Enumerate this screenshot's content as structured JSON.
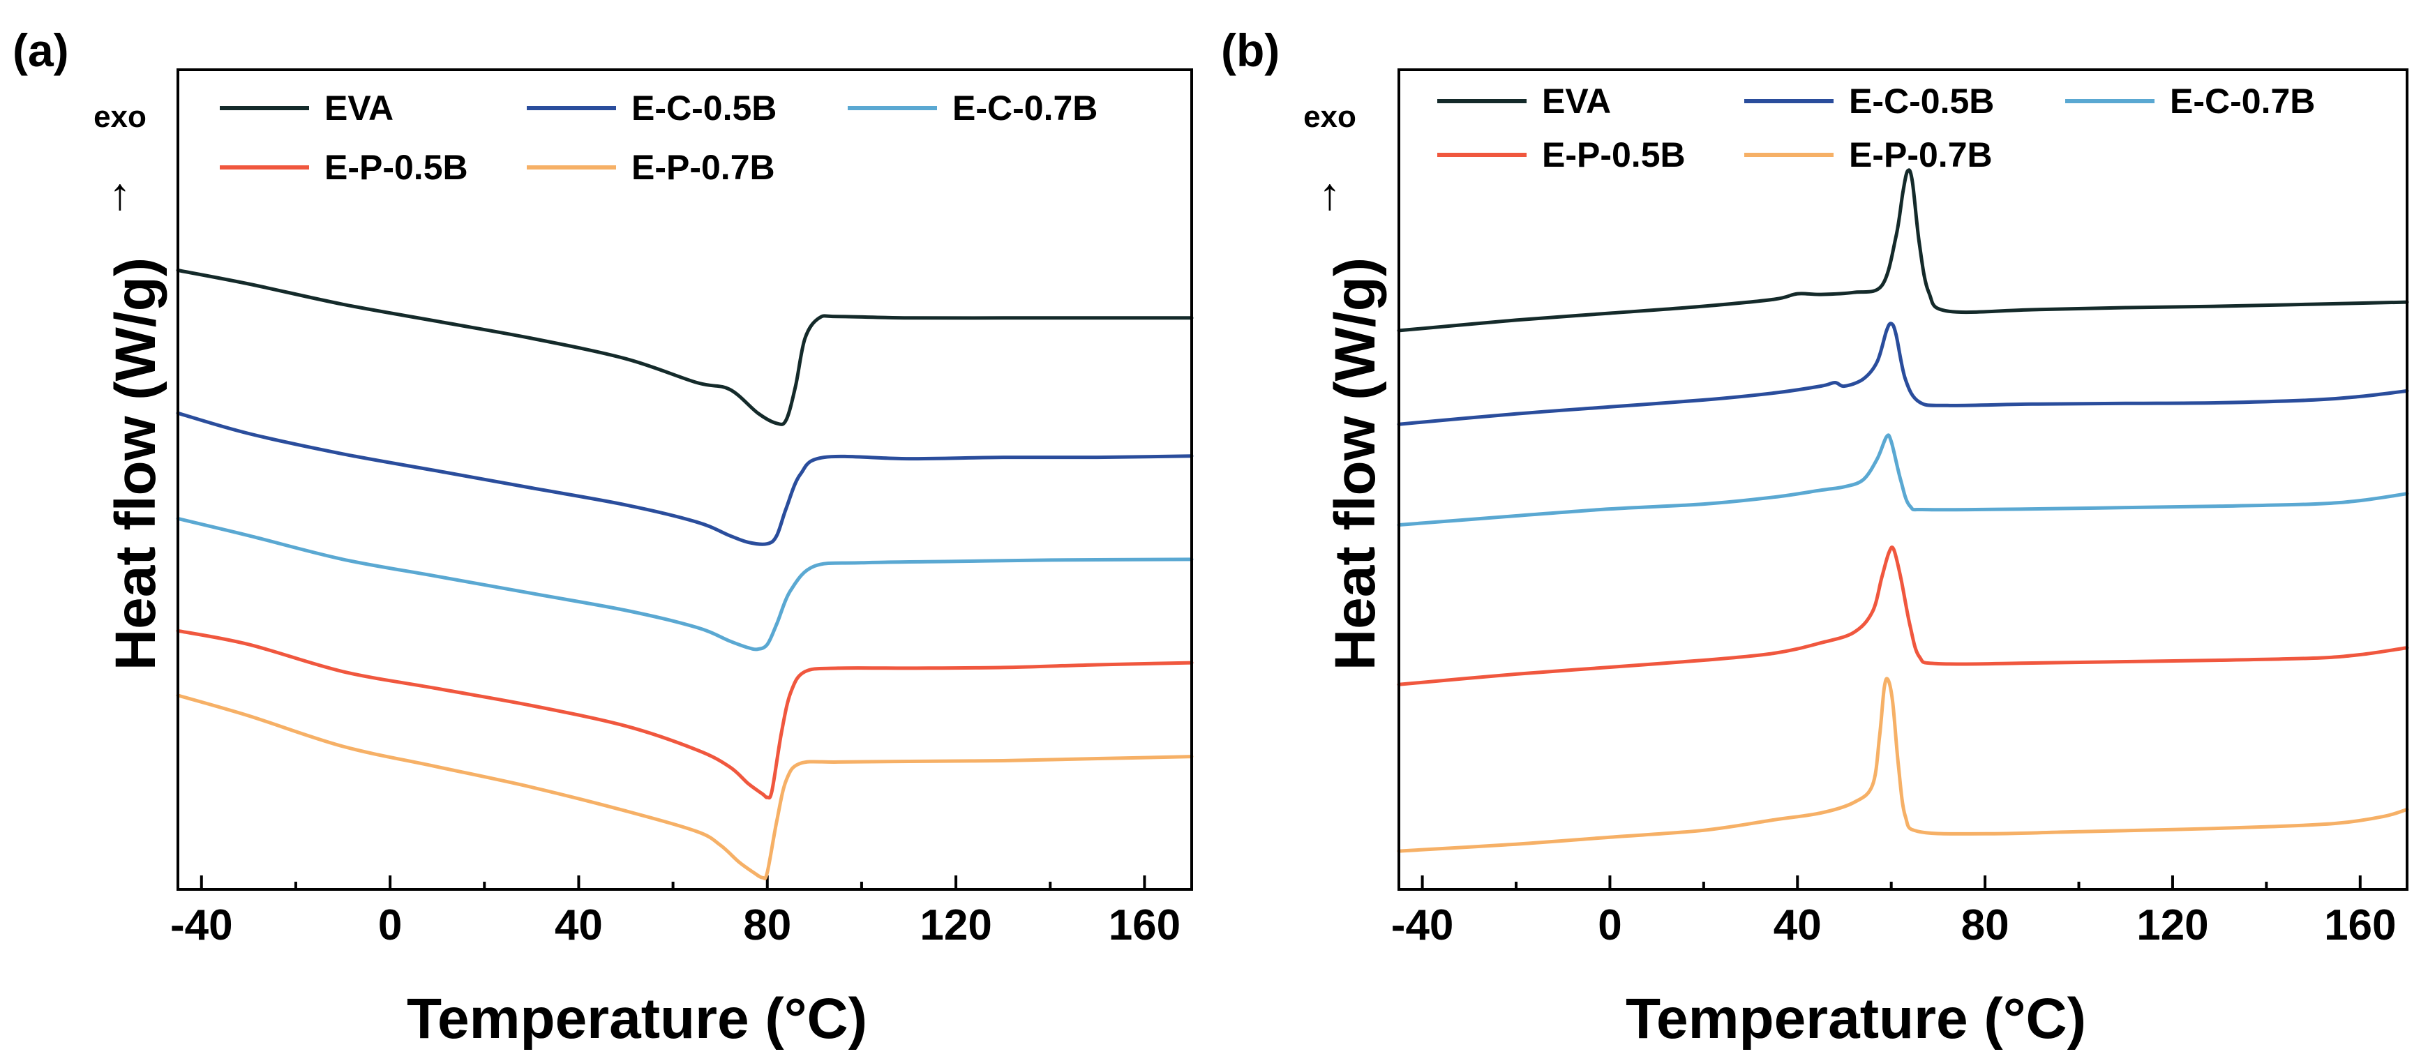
{
  "panels": [
    {
      "panel_label": "(a)",
      "exo_label": "exo",
      "arrow_glyph": "↑"
    },
    {
      "panel_label": "(b)",
      "exo_label": "exo",
      "arrow_glyph": "↑"
    }
  ],
  "chart_data": [
    {
      "type": "line",
      "title": "",
      "xlabel": "Temperature (°C)",
      "ylabel": "Heat flow (W/g)",
      "xlim": [
        -45,
        170
      ],
      "ylim": [
        0,
        100
      ],
      "xticks": [
        -40,
        0,
        40,
        80,
        120,
        160
      ],
      "yticks_shown": false,
      "grid": false,
      "legend_position": "top",
      "series": [
        {
          "name": "EVA",
          "color": "#142a2a",
          "points": [
            [
              -45,
              90
            ],
            [
              -30,
              88
            ],
            [
              -10,
              85
            ],
            [
              10,
              82.5
            ],
            [
              30,
              80
            ],
            [
              50,
              77
            ],
            [
              65,
              73.5
            ],
            [
              72,
              72.5
            ],
            [
              78,
              69
            ],
            [
              82,
              67.5
            ],
            [
              84,
              68
            ],
            [
              86,
              73
            ],
            [
              88,
              80
            ],
            [
              91,
              83
            ],
            [
              95,
              83.2
            ],
            [
              110,
              83
            ],
            [
              130,
              83
            ],
            [
              150,
              83
            ],
            [
              170,
              83
            ]
          ]
        },
        {
          "name": "E-C-0.5B",
          "color": "#2a4d9c",
          "points": [
            [
              -45,
              69
            ],
            [
              -30,
              66
            ],
            [
              -10,
              63
            ],
            [
              10,
              60.5
            ],
            [
              30,
              58
            ],
            [
              50,
              55.5
            ],
            [
              65,
              53
            ],
            [
              72,
              51
            ],
            [
              76,
              50
            ],
            [
              80,
              49.8
            ],
            [
              82,
              51
            ],
            [
              84,
              55
            ],
            [
              87,
              60
            ],
            [
              92,
              62.5
            ],
            [
              110,
              62.3
            ],
            [
              130,
              62.5
            ],
            [
              150,
              62.5
            ],
            [
              170,
              62.7
            ]
          ]
        },
        {
          "name": "E-C-0.7B",
          "color": "#5aa8d2",
          "points": [
            [
              -45,
              53.5
            ],
            [
              -30,
              51
            ],
            [
              -10,
              47.5
            ],
            [
              10,
              45
            ],
            [
              30,
              42.5
            ],
            [
              50,
              40
            ],
            [
              65,
              37.5
            ],
            [
              72,
              35.5
            ],
            [
              76,
              34.5
            ],
            [
              78,
              34.3
            ],
            [
              80,
              35
            ],
            [
              82,
              38
            ],
            [
              85,
              43
            ],
            [
              90,
              46.5
            ],
            [
              100,
              47
            ],
            [
              120,
              47.2
            ],
            [
              140,
              47.4
            ],
            [
              170,
              47.5
            ]
          ]
        },
        {
          "name": "E-P-0.5B",
          "color": "#f0573e",
          "points": [
            [
              -45,
              37
            ],
            [
              -30,
              35
            ],
            [
              -10,
              31
            ],
            [
              10,
              28.5
            ],
            [
              30,
              26
            ],
            [
              50,
              23
            ],
            [
              65,
              19.5
            ],
            [
              72,
              17
            ],
            [
              76,
              14.5
            ],
            [
              79,
              13
            ],
            [
              80,
              12.5
            ],
            [
              81,
              13.5
            ],
            [
              83,
              22
            ],
            [
              85,
              28
            ],
            [
              88,
              31
            ],
            [
              95,
              31.5
            ],
            [
              110,
              31.5
            ],
            [
              130,
              31.6
            ],
            [
              150,
              32
            ],
            [
              170,
              32.3
            ]
          ]
        },
        {
          "name": "E-P-0.7B",
          "color": "#f6b066",
          "points": [
            [
              -45,
              27.5
            ],
            [
              -30,
              24.5
            ],
            [
              -10,
              20
            ],
            [
              10,
              17
            ],
            [
              30,
              14
            ],
            [
              50,
              10.5
            ],
            [
              65,
              7.5
            ],
            [
              70,
              5.5
            ],
            [
              74,
              3
            ],
            [
              77,
              1.5
            ],
            [
              79,
              0.7
            ],
            [
              80,
              1.5
            ],
            [
              82,
              9
            ],
            [
              84,
              15
            ],
            [
              87,
              17.5
            ],
            [
              95,
              17.7
            ],
            [
              110,
              17.8
            ],
            [
              130,
              17.9
            ],
            [
              150,
              18.2
            ],
            [
              170,
              18.5
            ]
          ]
        }
      ]
    },
    {
      "type": "line",
      "title": "",
      "xlabel": "Temperature (°C)",
      "ylabel": "Heat flow (W/g)",
      "xlim": [
        -45,
        170
      ],
      "ylim": [
        0,
        100
      ],
      "xticks": [
        -40,
        0,
        40,
        80,
        120,
        160
      ],
      "yticks_shown": false,
      "grid": false,
      "legend_position": "top",
      "series": [
        {
          "name": "EVA",
          "color": "#142a2a",
          "points": [
            [
              -45,
              77.5
            ],
            [
              -20,
              79
            ],
            [
              0,
              80
            ],
            [
              20,
              81
            ],
            [
              35,
              82
            ],
            [
              40,
              82.8
            ],
            [
              45,
              82.7
            ],
            [
              52,
              83
            ],
            [
              58,
              84
            ],
            [
              61,
              91
            ],
            [
              62.5,
              97.5
            ],
            [
              63.5,
              100.5
            ],
            [
              64.5,
              99
            ],
            [
              66,
              90
            ],
            [
              68,
              83
            ],
            [
              72,
              80.3
            ],
            [
              90,
              80.5
            ],
            [
              110,
              80.8
            ],
            [
              130,
              81
            ],
            [
              150,
              81.3
            ],
            [
              170,
              81.6
            ]
          ]
        },
        {
          "name": "E-C-0.5B",
          "color": "#2a4d9c",
          "points": [
            [
              -45,
              64
            ],
            [
              -20,
              65.5
            ],
            [
              0,
              66.5
            ],
            [
              20,
              67.5
            ],
            [
              35,
              68.5
            ],
            [
              45,
              69.5
            ],
            [
              48,
              70
            ],
            [
              50,
              69.5
            ],
            [
              54,
              70.5
            ],
            [
              57,
              73
            ],
            [
              59,
              77.5
            ],
            [
              60,
              78.5
            ],
            [
              61,
              77
            ],
            [
              63,
              70.5
            ],
            [
              66,
              67.2
            ],
            [
              72,
              66.7
            ],
            [
              90,
              66.9
            ],
            [
              110,
              67
            ],
            [
              130,
              67.1
            ],
            [
              150,
              67.5
            ],
            [
              160,
              68
            ],
            [
              170,
              68.8
            ]
          ]
        },
        {
          "name": "E-C-0.7B",
          "color": "#5aa8d2",
          "points": [
            [
              -45,
              49.5
            ],
            [
              -20,
              50.8
            ],
            [
              0,
              51.8
            ],
            [
              20,
              52.5
            ],
            [
              35,
              53.5
            ],
            [
              45,
              54.5
            ],
            [
              50,
              55
            ],
            [
              54,
              56
            ],
            [
              57,
              59
            ],
            [
              59,
              62.2
            ],
            [
              60,
              61.5
            ],
            [
              62,
              56
            ],
            [
              64,
              52.2
            ],
            [
              68,
              51.7
            ],
            [
              90,
              51.8
            ],
            [
              110,
              52
            ],
            [
              130,
              52.2
            ],
            [
              150,
              52.5
            ],
            [
              160,
              53
            ],
            [
              170,
              54
            ]
          ]
        },
        {
          "name": "E-P-0.5B",
          "color": "#f0573e",
          "points": [
            [
              -45,
              26.5
            ],
            [
              -20,
              28
            ],
            [
              0,
              29
            ],
            [
              20,
              30
            ],
            [
              35,
              31
            ],
            [
              45,
              32.5
            ],
            [
              52,
              34
            ],
            [
              56,
              37
            ],
            [
              58,
              42
            ],
            [
              59.5,
              45.5
            ],
            [
              60.5,
              46
            ],
            [
              62,
              42
            ],
            [
              64,
              35
            ],
            [
              66,
              30.5
            ],
            [
              70,
              29.5
            ],
            [
              90,
              29.6
            ],
            [
              110,
              29.8
            ],
            [
              130,
              30
            ],
            [
              150,
              30.3
            ],
            [
              160,
              30.8
            ],
            [
              170,
              31.8
            ]
          ]
        },
        {
          "name": "E-P-0.7B",
          "color": "#f6b066",
          "points": [
            [
              -45,
              2.5
            ],
            [
              -20,
              3.5
            ],
            [
              0,
              4.5
            ],
            [
              20,
              5.5
            ],
            [
              35,
              7
            ],
            [
              45,
              8
            ],
            [
              52,
              9.5
            ],
            [
              56,
              12
            ],
            [
              57.5,
              19
            ],
            [
              58.5,
              26
            ],
            [
              59.3,
              27.2
            ],
            [
              60.3,
              24
            ],
            [
              61.5,
              15
            ],
            [
              63,
              7.5
            ],
            [
              66,
              5.3
            ],
            [
              80,
              5
            ],
            [
              100,
              5.3
            ],
            [
              120,
              5.6
            ],
            [
              140,
              6
            ],
            [
              155,
              6.5
            ],
            [
              165,
              7.5
            ],
            [
              170,
              8.5
            ]
          ]
        }
      ]
    }
  ]
}
